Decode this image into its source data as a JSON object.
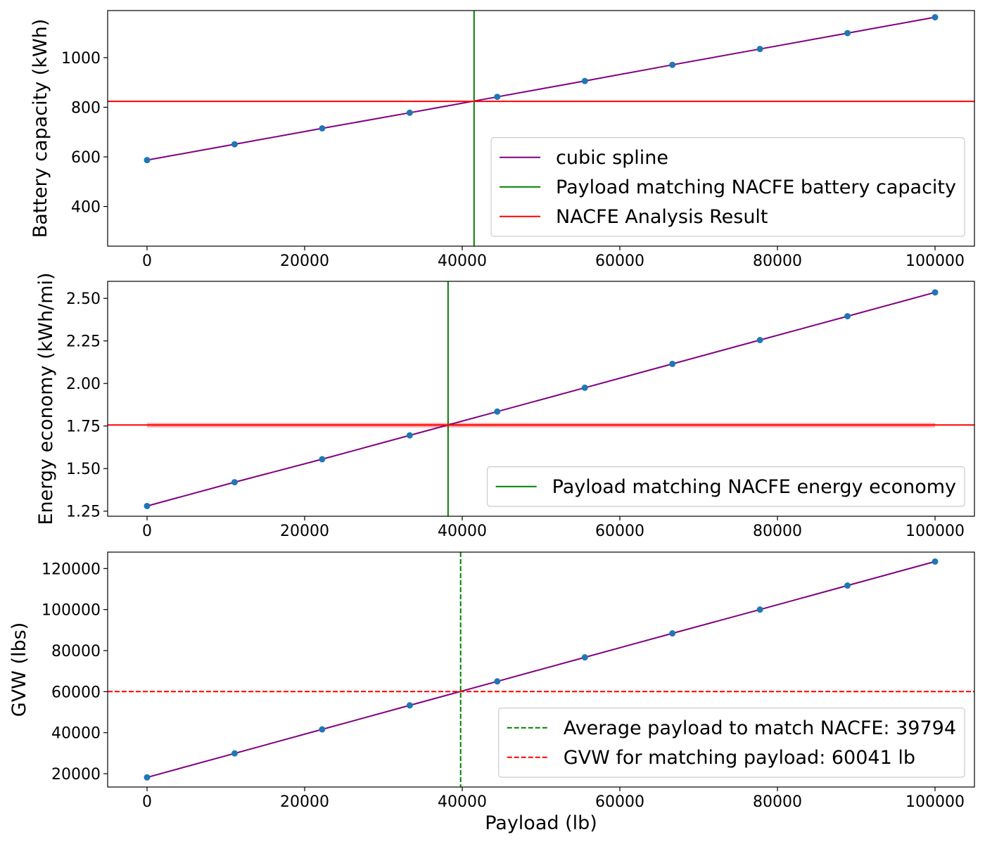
{
  "chart_data": [
    {
      "type": "line",
      "xlabel": "",
      "ylabel": "Battery capacity (kWh)",
      "xlim": [
        -5000,
        105000
      ],
      "ylim": [
        240,
        1190
      ],
      "xticks": [
        0,
        20000,
        40000,
        60000,
        80000,
        100000
      ],
      "yticks": [
        400,
        600,
        800,
        1000
      ],
      "x": [
        0,
        11111,
        22222,
        33333,
        44444,
        55556,
        66667,
        77778,
        88889,
        100000
      ],
      "series": [
        {
          "name": "cubic spline",
          "values": [
            587,
            651,
            715,
            778,
            842,
            906,
            971,
            1035,
            1099,
            1163
          ],
          "line_color": "#800080",
          "marker_color": "#1f77b4"
        }
      ],
      "vline": {
        "name": "Payload matching NACFE battery capacity",
        "x": 41500,
        "color": "#008000",
        "style": "solid"
      },
      "hline": {
        "name": "NACFE Analysis Result",
        "y": 824,
        "color": "#ff0000",
        "style": "solid"
      },
      "legend": {
        "position": "lower-right",
        "entries": [
          {
            "label": "cubic spline",
            "color": "#800080",
            "style": "solid"
          },
          {
            "label": "Payload matching NACFE battery capacity",
            "color": "#008000",
            "style": "solid"
          },
          {
            "label": "NACFE Analysis Result",
            "color": "#ff0000",
            "style": "solid"
          }
        ]
      }
    },
    {
      "type": "line",
      "xlabel": "",
      "ylabel": "Energy economy (kWh/mi)",
      "xlim": [
        -5000,
        105000
      ],
      "ylim": [
        1.22,
        2.6
      ],
      "xticks": [
        0,
        20000,
        40000,
        60000,
        80000,
        100000
      ],
      "yticks": [
        1.25,
        1.5,
        1.75,
        2.0,
        2.25,
        2.5
      ],
      "ytick_labels": [
        "1.25",
        "1.50",
        "1.75",
        "2.00",
        "2.25",
        "2.50"
      ],
      "x": [
        0,
        11111,
        22222,
        33333,
        44444,
        55556,
        66667,
        77778,
        88889,
        100000
      ],
      "series": [
        {
          "name": "",
          "values": [
            1.28,
            1.42,
            1.555,
            1.695,
            1.835,
            1.975,
            2.115,
            2.255,
            2.395,
            2.535
          ],
          "line_color": "#800080",
          "marker_color": "#1f77b4"
        }
      ],
      "vline": {
        "name": "Payload matching NACFE energy economy",
        "x": 38200,
        "color": "#008000",
        "style": "solid"
      },
      "hline": {
        "name": "",
        "y": 1.756,
        "color": "#ff0000",
        "style": "solid"
      },
      "band": {
        "x": [
          0,
          100000
        ],
        "y": [
          1.742,
          1.768
        ],
        "color": "#ff0000",
        "opacity": 0.35
      },
      "legend": {
        "position": "lower-right",
        "entries": [
          {
            "label": "Payload matching NACFE energy economy",
            "color": "#008000",
            "style": "solid"
          }
        ]
      }
    },
    {
      "type": "line",
      "xlabel": "Payload (lb)",
      "ylabel": "GVW (lbs)",
      "xlim": [
        -5000,
        105000
      ],
      "ylim": [
        13500,
        128000
      ],
      "xticks": [
        0,
        20000,
        40000,
        60000,
        80000,
        100000
      ],
      "yticks": [
        20000,
        40000,
        60000,
        80000,
        100000,
        120000
      ],
      "x": [
        0,
        11111,
        22222,
        33333,
        44444,
        55556,
        66667,
        77778,
        88889,
        100000
      ],
      "series": [
        {
          "name": "",
          "values": [
            18200,
            29900,
            41600,
            53300,
            65000,
            76700,
            88400,
            100000,
            111700,
            123400
          ],
          "line_color": "#800080",
          "marker_color": "#1f77b4"
        }
      ],
      "vline": {
        "name": "Average payload to match NACFE: 39794",
        "x": 39794,
        "color": "#008000",
        "style": "dashed"
      },
      "hline": {
        "name": "GVW for matching payload: 60041 lb",
        "y": 60041,
        "color": "#ff0000",
        "style": "dashed"
      },
      "legend": {
        "position": "lower-right",
        "entries": [
          {
            "label": "Average payload to match NACFE: 39794",
            "color": "#008000",
            "style": "dashed"
          },
          {
            "label": "GVW for matching payload: 60041 lb",
            "color": "#ff0000",
            "style": "dashed"
          }
        ]
      }
    }
  ]
}
